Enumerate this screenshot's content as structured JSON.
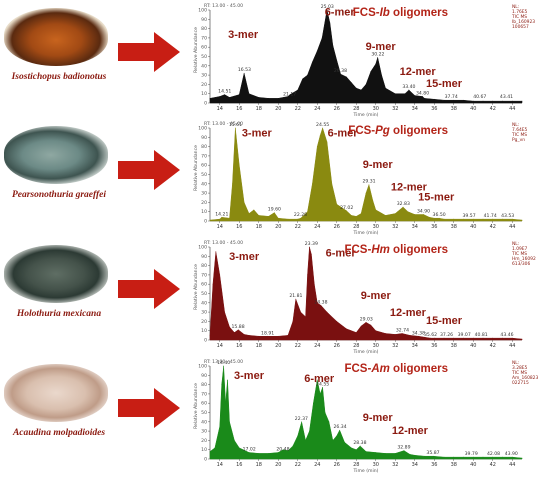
{
  "panels": [
    {
      "species": "Isostichopus badionotus",
      "title_prefix": "FCS-",
      "title_code": "Ib",
      "title_suffix": " oligomers",
      "rt": "RT: 13.00 - 45.00",
      "info": [
        "NL:",
        "1.76E5",
        "TIC MS",
        "Ib_160923",
        "100657"
      ],
      "color": "#111111",
      "ylabel": "Relative Abundance",
      "xlabel": "Time (min)",
      "yticks": [
        "100",
        "95",
        "90",
        "85",
        "80",
        "75",
        "70",
        "65",
        "60",
        "55",
        "50",
        "45",
        "40",
        "35",
        "30",
        "25",
        "20",
        "15",
        "10",
        "5",
        "0"
      ],
      "xticks": [
        "14",
        "16",
        "18",
        "20",
        "22",
        "24",
        "26",
        "28",
        "30",
        "32",
        "34",
        "36",
        "38",
        "40",
        "42",
        "44"
      ],
      "mers": [
        {
          "label": "3-mer",
          "x": 16.4,
          "y": 70
        },
        {
          "label": "6-mer",
          "x": 26.3,
          "y": 94
        },
        {
          "label": "9-mer",
          "x": 30.5,
          "y": 57
        },
        {
          "label": "12-mer",
          "x": 34.3,
          "y": 30
        },
        {
          "label": "15-mer",
          "x": 37.0,
          "y": 17
        }
      ],
      "peak_labels": [
        {
          "t": "14.51",
          "x": 14.51,
          "y": 9
        },
        {
          "t": "16.53",
          "x": 16.53,
          "y": 32
        },
        {
          "t": "21.17",
          "x": 21.17,
          "y": 6
        },
        {
          "t": "25.03",
          "x": 25.03,
          "y": 100
        },
        {
          "t": "26.38",
          "x": 26.38,
          "y": 31
        },
        {
          "t": "30.22",
          "x": 30.22,
          "y": 49
        },
        {
          "t": "33.40",
          "x": 33.4,
          "y": 14
        },
        {
          "t": "34.80",
          "x": 34.8,
          "y": 7
        },
        {
          "t": "37.74",
          "x": 37.74,
          "y": 3
        },
        {
          "t": "40.67",
          "x": 40.67,
          "y": 3
        },
        {
          "t": "43.41",
          "x": 43.41,
          "y": 3
        }
      ],
      "chart_data": {
        "type": "line",
        "x": [
          13,
          14,
          14.5,
          15,
          16,
          16.5,
          17,
          18,
          19,
          20,
          21,
          21.2,
          22,
          22.5,
          23,
          23.5,
          24,
          24.5,
          25,
          25.3,
          25.6,
          26,
          26.4,
          27,
          27.5,
          28,
          28.5,
          29,
          29.5,
          30,
          30.2,
          30.6,
          31,
          32,
          33,
          33.4,
          34,
          34.8,
          35,
          36,
          37,
          38,
          39,
          40,
          41,
          42,
          43,
          44,
          45
        ],
        "y": [
          5,
          7,
          9,
          6,
          9,
          32,
          10,
          6,
          5,
          5,
          7,
          9,
          14,
          26,
          30,
          44,
          56,
          70,
          100,
          86,
          62,
          46,
          31,
          28,
          22,
          16,
          14,
          20,
          34,
          42,
          49,
          30,
          16,
          10,
          10,
          14,
          8,
          7,
          5,
          4,
          3,
          3,
          3,
          2,
          2,
          2,
          2,
          2,
          2
        ],
        "xlim": [
          13,
          45
        ],
        "ylim": [
          0,
          100
        ]
      }
    },
    {
      "species": "Pearsonothuria graeffei",
      "title_prefix": "FCS-",
      "title_code": "Pg",
      "title_suffix": " oligomers",
      "rt": "RT: 13.00 - 45.00",
      "info": [
        "NL:",
        "7.64E5",
        "TIC MS",
        "Pg_vn"
      ],
      "color": "#8a8a10",
      "ylabel": "Relative Abundance",
      "xlabel": "Time (min)",
      "yticks": [
        "100",
        "95",
        "90",
        "85",
        "80",
        "75",
        "70",
        "65",
        "60",
        "55",
        "50",
        "45",
        "40",
        "35",
        "30",
        "25",
        "20",
        "15",
        "10",
        "5",
        "0"
      ],
      "xticks": [
        "14",
        "16",
        "18",
        "20",
        "22",
        "24",
        "26",
        "28",
        "30",
        "32",
        "34",
        "36",
        "38",
        "40",
        "42",
        "44"
      ],
      "mers": [
        {
          "label": "3-mer",
          "x": 17.8,
          "y": 91
        },
        {
          "label": "6-mer",
          "x": 26.6,
          "y": 91
        },
        {
          "label": "9-mer",
          "x": 30.2,
          "y": 57
        },
        {
          "label": "12-mer",
          "x": 33.4,
          "y": 33
        },
        {
          "label": "15-mer",
          "x": 36.2,
          "y": 22
        }
      ],
      "peak_labels": [
        {
          "t": "14.21",
          "x": 14.21,
          "y": 4
        },
        {
          "t": "15.61",
          "x": 15.61,
          "y": 100
        },
        {
          "t": "19.60",
          "x": 19.6,
          "y": 9
        },
        {
          "t": "22.28",
          "x": 22.28,
          "y": 3
        },
        {
          "t": "24.55",
          "x": 24.55,
          "y": 100
        },
        {
          "t": "27.02",
          "x": 27.02,
          "y": 11
        },
        {
          "t": "29.31",
          "x": 29.31,
          "y": 39
        },
        {
          "t": "32.83",
          "x": 32.83,
          "y": 15
        },
        {
          "t": "34.90",
          "x": 34.9,
          "y": 7
        },
        {
          "t": "36.50",
          "x": 36.5,
          "y": 3
        },
        {
          "t": "39.57",
          "x": 39.57,
          "y": 2
        },
        {
          "t": "41.74",
          "x": 41.74,
          "y": 2
        },
        {
          "t": "43.53",
          "x": 43.53,
          "y": 2
        }
      ],
      "chart_data": {
        "type": "line",
        "x": [
          13,
          14,
          14.2,
          15,
          15.3,
          15.6,
          16,
          16.5,
          17,
          17.5,
          18,
          19,
          19.6,
          20,
          21,
          22,
          22.3,
          23,
          23.5,
          24,
          24.3,
          24.55,
          25,
          25.5,
          26,
          27,
          27.5,
          28,
          28.5,
          29,
          29.3,
          29.7,
          30,
          31,
          32,
          32.8,
          33.3,
          34,
          34.9,
          35.5,
          36,
          36.5,
          37,
          38,
          39,
          40,
          41,
          42,
          43,
          44,
          45
        ],
        "y": [
          1,
          2,
          4,
          3,
          40,
          100,
          60,
          20,
          8,
          12,
          6,
          5,
          9,
          3,
          2,
          2,
          3,
          10,
          40,
          80,
          92,
          100,
          85,
          40,
          18,
          11,
          6,
          5,
          8,
          30,
          39,
          22,
          12,
          6,
          8,
          15,
          10,
          7,
          7,
          4,
          3,
          3,
          2,
          2,
          2,
          2,
          2,
          2,
          2,
          2,
          1
        ],
        "xlim": [
          13,
          45
        ],
        "ylim": [
          0,
          100
        ]
      }
    },
    {
      "species": "Holothuria mexicana",
      "title_prefix": "FCS-",
      "title_code": "Hm",
      "title_suffix": " oligomers",
      "rt": "RT: 13.00 - 45.00",
      "info": [
        "NL:",
        "1.09E7",
        "TIC MS",
        "Hm_16092",
        "613/306"
      ],
      "color": "#7a1010",
      "ylabel": "Relative Abundance",
      "xlabel": "Time (min)",
      "yticks": [
        "100",
        "95",
        "90",
        "85",
        "80",
        "75",
        "70",
        "65",
        "60",
        "55",
        "50",
        "45",
        "40",
        "35",
        "30",
        "25",
        "20",
        "15",
        "10",
        "5",
        "0"
      ],
      "xticks": [
        "14",
        "16",
        "18",
        "20",
        "22",
        "24",
        "26",
        "28",
        "30",
        "32",
        "34",
        "36",
        "38",
        "40",
        "42",
        "44"
      ],
      "mers": [
        {
          "label": "3-mer",
          "x": 16.5,
          "y": 86
        },
        {
          "label": "6-mer",
          "x": 26.4,
          "y": 90
        },
        {
          "label": "9-mer",
          "x": 30.0,
          "y": 44
        },
        {
          "label": "12-mer",
          "x": 33.3,
          "y": 26
        },
        {
          "label": "15-mer",
          "x": 37.0,
          "y": 17
        }
      ],
      "peak_labels": [
        {
          "t": "15.88",
          "x": 15.88,
          "y": 11
        },
        {
          "t": "18.91",
          "x": 18.91,
          "y": 4
        },
        {
          "t": "21.81",
          "x": 21.81,
          "y": 44
        },
        {
          "t": "23.39",
          "x": 23.39,
          "y": 100
        },
        {
          "t": "24.38",
          "x": 24.38,
          "y": 37
        },
        {
          "t": "29.03",
          "x": 29.03,
          "y": 19
        },
        {
          "t": "32.74",
          "x": 32.74,
          "y": 7
        },
        {
          "t": "34.38",
          "x": 34.38,
          "y": 4
        },
        {
          "t": "35.62",
          "x": 35.62,
          "y": 2
        },
        {
          "t": "37.26",
          "x": 37.26,
          "y": 2
        },
        {
          "t": "39.07",
          "x": 39.07,
          "y": 2
        },
        {
          "t": "40.81",
          "x": 40.81,
          "y": 2
        },
        {
          "t": "43.46",
          "x": 43.46,
          "y": 2
        }
      ],
      "chart_data": {
        "type": "line",
        "x": [
          13,
          13.3,
          13.6,
          14,
          14.5,
          15,
          15.5,
          15.9,
          16.5,
          17,
          18,
          18.9,
          20,
          21,
          21.5,
          21.8,
          22.3,
          22.8,
          23,
          23.2,
          23.4,
          23.7,
          24,
          24.4,
          25,
          26,
          27,
          28,
          28.5,
          29,
          29.5,
          30,
          31,
          32,
          32.7,
          33.5,
          34.4,
          35,
          35.6,
          36,
          37,
          38,
          39,
          40,
          41,
          42,
          43,
          44,
          45
        ],
        "y": [
          5,
          60,
          95,
          70,
          30,
          14,
          8,
          11,
          6,
          5,
          4,
          4,
          4,
          5,
          20,
          44,
          30,
          25,
          70,
          100,
          92,
          60,
          40,
          37,
          30,
          20,
          12,
          8,
          15,
          19,
          16,
          10,
          7,
          6,
          7,
          5,
          4,
          3,
          2,
          2,
          2,
          2,
          2,
          2,
          2,
          2,
          2,
          2,
          1
        ],
        "xlim": [
          13,
          45
        ],
        "ylim": [
          0,
          100
        ]
      }
    },
    {
      "species": "Acaudina molpadioides",
      "title_prefix": "FCS-",
      "title_code": "Am",
      "title_suffix": " oligomers",
      "rt": "RT: 13.00 - 45.00",
      "info": [
        "NL:",
        "3.28E5",
        "TIC MS",
        "Am_160823",
        "022715"
      ],
      "color": "#1a8a1a",
      "ylabel": "Relative Abundance",
      "xlabel": "Time (min)",
      "yticks": [
        "100",
        "95",
        "90",
        "85",
        "80",
        "75",
        "70",
        "65",
        "60",
        "55",
        "50",
        "45",
        "40",
        "35",
        "30",
        "25",
        "20",
        "15",
        "10",
        "5",
        "0"
      ],
      "xticks": [
        "14",
        "16",
        "18",
        "20",
        "22",
        "24",
        "26",
        "28",
        "30",
        "32",
        "34",
        "36",
        "38",
        "40",
        "42",
        "44"
      ],
      "mers": [
        {
          "label": "3-mer",
          "x": 17.0,
          "y": 86
        },
        {
          "label": "6-mer",
          "x": 24.2,
          "y": 83
        },
        {
          "label": "9-mer",
          "x": 30.2,
          "y": 41
        },
        {
          "label": "12-mer",
          "x": 33.5,
          "y": 27
        }
      ],
      "peak_labels": [
        {
          "t": "14.40",
          "x": 14.4,
          "y": 100
        },
        {
          "t": "17.02",
          "x": 17.02,
          "y": 7
        },
        {
          "t": "20.48",
          "x": 20.48,
          "y": 7
        },
        {
          "t": "22.37",
          "x": 22.37,
          "y": 40
        },
        {
          "t": "24.55",
          "x": 24.55,
          "y": 77
        },
        {
          "t": "26.34",
          "x": 26.34,
          "y": 31
        },
        {
          "t": "28.38",
          "x": 28.38,
          "y": 14
        },
        {
          "t": "32.89",
          "x": 32.89,
          "y": 9
        },
        {
          "t": "35.87",
          "x": 35.87,
          "y": 3
        },
        {
          "t": "39.79",
          "x": 39.79,
          "y": 2
        },
        {
          "t": "42.08",
          "x": 42.08,
          "y": 2
        },
        {
          "t": "43.90",
          "x": 43.9,
          "y": 2
        }
      ],
      "chart_data": {
        "type": "line",
        "x": [
          13,
          13.5,
          14,
          14.2,
          14.4,
          14.6,
          14.8,
          15,
          15.5,
          16,
          17,
          18,
          19,
          20,
          20.5,
          21,
          21.5,
          22,
          22.4,
          22.8,
          23.2,
          23.6,
          24,
          24.3,
          24.55,
          24.8,
          25.2,
          25.6,
          26,
          26.3,
          26.8,
          27.5,
          28,
          28.4,
          29,
          30,
          31,
          32,
          32.9,
          33.5,
          34,
          35,
          35.9,
          37,
          38,
          39,
          40,
          41,
          42,
          43,
          44,
          45
        ],
        "y": [
          8,
          12,
          35,
          80,
          100,
          60,
          85,
          40,
          20,
          12,
          7,
          6,
          6,
          7,
          10,
          9,
          14,
          25,
          40,
          20,
          30,
          60,
          85,
          70,
          77,
          50,
          40,
          20,
          25,
          31,
          18,
          12,
          10,
          14,
          8,
          7,
          6,
          6,
          9,
          5,
          4,
          3,
          3,
          2,
          2,
          2,
          2,
          2,
          2,
          2,
          2,
          1
        ],
        "xlim": [
          13,
          45
        ],
        "ylim": [
          0,
          100
        ]
      }
    }
  ],
  "colors": {
    "arrow": "#c81e14",
    "title": "#b32418",
    "species": "#8b1a10"
  }
}
